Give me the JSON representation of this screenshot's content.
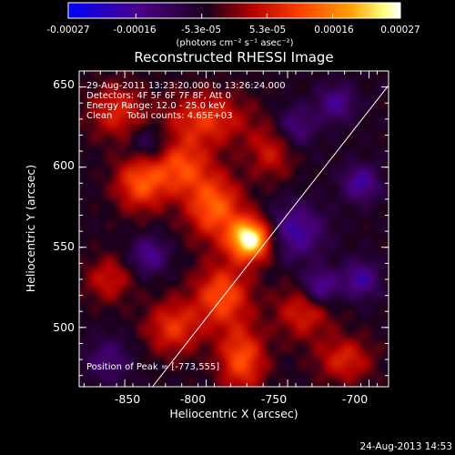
{
  "colorbar": {
    "tick_labels": [
      "-0.00027",
      "-0.00016",
      "-5.3e-05",
      "5.3e-05",
      "0.00016",
      "0.00027"
    ],
    "tick_values": [
      -0.00027,
      -0.00016,
      -5.3e-05,
      5.3e-05,
      0.00016,
      0.00027
    ],
    "range": [
      -0.00027,
      0.00027
    ],
    "units_label": "(photons cm⁻² s⁻¹ asec⁻²)",
    "colormap": [
      "#0000ff",
      "#4b0082",
      "#1a001a",
      "#b00000",
      "#ff4000",
      "#ffa000",
      "#ffff80",
      "#ffffff"
    ]
  },
  "chart_data": {
    "type": "heatmap",
    "title": "Reconstructed RHESSI Image",
    "xlabel": "Heliocentric X (arcsec)",
    "ylabel": "Heliocentric Y (arcsec)",
    "xlim": [
      -878,
      -688
    ],
    "ylim": [
      463,
      660
    ],
    "x_ticks": [
      -850,
      -800,
      -750,
      -700
    ],
    "y_ticks": [
      500,
      550,
      600,
      650
    ],
    "info_lines": [
      "29-Aug-2011 13:23:20.000 to 13:26:24.000",
      "Detectors: 4F 5F 6F 7F 8F, Att 0",
      "Energy Range: 12.0 - 25.0 keV",
      "Clean     Total counts: 4.65E+03"
    ],
    "peak_label": "Position of Peak = [-773,555]",
    "peak": {
      "x": -773,
      "y": 555
    },
    "limb_line": [
      [
        -833,
        463
      ],
      [
        -688,
        651
      ]
    ],
    "sources": [
      {
        "x": -773,
        "y": 555,
        "amp": 1.0,
        "sx": 9,
        "sy": 9
      },
      {
        "x": -795,
        "y": 575,
        "amp": 0.55,
        "sx": 12,
        "sy": 14
      },
      {
        "x": -815,
        "y": 600,
        "amp": 0.45,
        "sx": 12,
        "sy": 12
      },
      {
        "x": -840,
        "y": 590,
        "amp": 0.5,
        "sx": 11,
        "sy": 12
      },
      {
        "x": -800,
        "y": 630,
        "amp": 0.4,
        "sx": 18,
        "sy": 12
      },
      {
        "x": -855,
        "y": 635,
        "amp": 0.35,
        "sx": 12,
        "sy": 12
      },
      {
        "x": -790,
        "y": 520,
        "amp": 0.5,
        "sx": 12,
        "sy": 14
      },
      {
        "x": -820,
        "y": 500,
        "amp": 0.4,
        "sx": 12,
        "sy": 12
      },
      {
        "x": -778,
        "y": 480,
        "amp": 0.5,
        "sx": 10,
        "sy": 14
      },
      {
        "x": -740,
        "y": 510,
        "amp": 0.35,
        "sx": 12,
        "sy": 12
      },
      {
        "x": -760,
        "y": 610,
        "amp": 0.3,
        "sx": 10,
        "sy": 12
      },
      {
        "x": -715,
        "y": 480,
        "amp": 0.35,
        "sx": 12,
        "sy": 10
      },
      {
        "x": -860,
        "y": 530,
        "amp": 0.3,
        "sx": 10,
        "sy": 10
      },
      {
        "x": -835,
        "y": 545,
        "amp": -0.35,
        "sx": 8,
        "sy": 8
      },
      {
        "x": -835,
        "y": 615,
        "amp": -0.25,
        "sx": 8,
        "sy": 8
      },
      {
        "x": -745,
        "y": 560,
        "amp": -0.4,
        "sx": 12,
        "sy": 12
      },
      {
        "x": -705,
        "y": 590,
        "amp": -0.4,
        "sx": 8,
        "sy": 8
      },
      {
        "x": -730,
        "y": 525,
        "amp": -0.45,
        "sx": 8,
        "sy": 8
      },
      {
        "x": -705,
        "y": 530,
        "amp": -0.4,
        "sx": 8,
        "sy": 8
      },
      {
        "x": -745,
        "y": 625,
        "amp": -0.3,
        "sx": 9,
        "sy": 9
      },
      {
        "x": -720,
        "y": 640,
        "amp": -0.35,
        "sx": 8,
        "sy": 8
      },
      {
        "x": -860,
        "y": 480,
        "amp": -0.25,
        "sx": 10,
        "sy": 10
      }
    ]
  },
  "footer_timestamp": "24-Aug-2013 14:53"
}
